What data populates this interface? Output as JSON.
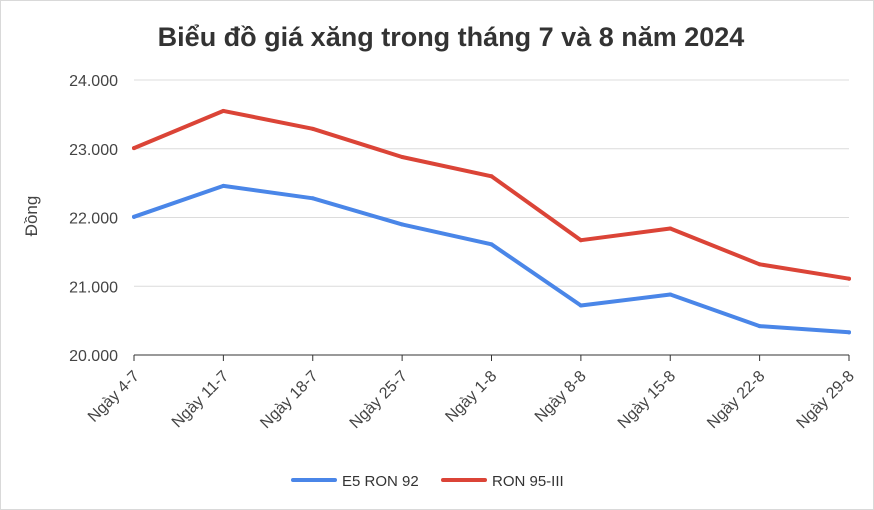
{
  "chart_data": {
    "type": "line",
    "title": "Biểu đồ giá xăng trong tháng 7 và 8 năm 2024",
    "xlabel": "",
    "ylabel": "Đồng",
    "categories": [
      "Ngày 4-7",
      "Ngày 11-7",
      "Ngày 18-7",
      "Ngày 25-7",
      "Ngày 1-8",
      "Ngày 8-8",
      "Ngày 15-8",
      "Ngày 22-8",
      "Ngày 29-8"
    ],
    "ylim": [
      20000,
      24000
    ],
    "yticks": [
      20000,
      21000,
      22000,
      23000,
      24000
    ],
    "ytick_labels": [
      "20.000",
      "21.000",
      "22.000",
      "23.000",
      "24.000"
    ],
    "grid": true,
    "legend_position": "bottom",
    "series": [
      {
        "name": "E5 RON 92",
        "color": "#4a86e8",
        "values": [
          22010,
          22460,
          22280,
          21900,
          21610,
          20720,
          20880,
          20420,
          20330
        ]
      },
      {
        "name": "RON 95-III",
        "color": "#db4437",
        "values": [
          23010,
          23550,
          23290,
          22880,
          22600,
          21670,
          21840,
          21320,
          21110
        ]
      }
    ]
  }
}
